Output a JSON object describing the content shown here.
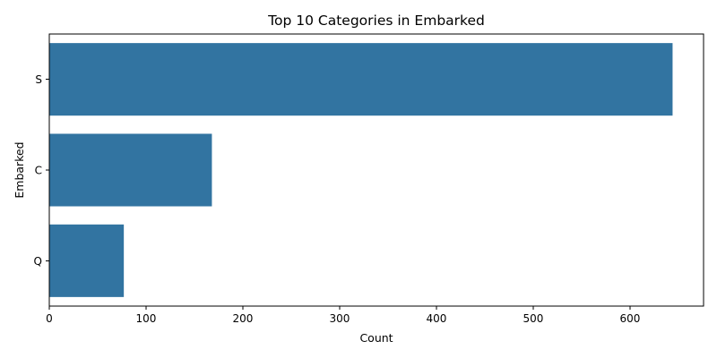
{
  "chart_data": {
    "type": "bar",
    "orientation": "horizontal",
    "title": "Top 10 Categories in Embarked",
    "xlabel": "Count",
    "ylabel": "Embarked",
    "categories": [
      "S",
      "C",
      "Q"
    ],
    "values": [
      644,
      168,
      77
    ],
    "xlim": [
      0,
      676
    ],
    "xticks": [
      0,
      100,
      200,
      300,
      400,
      500,
      600
    ],
    "bar_color": "#3274a1",
    "grid": false,
    "legend": "none"
  }
}
